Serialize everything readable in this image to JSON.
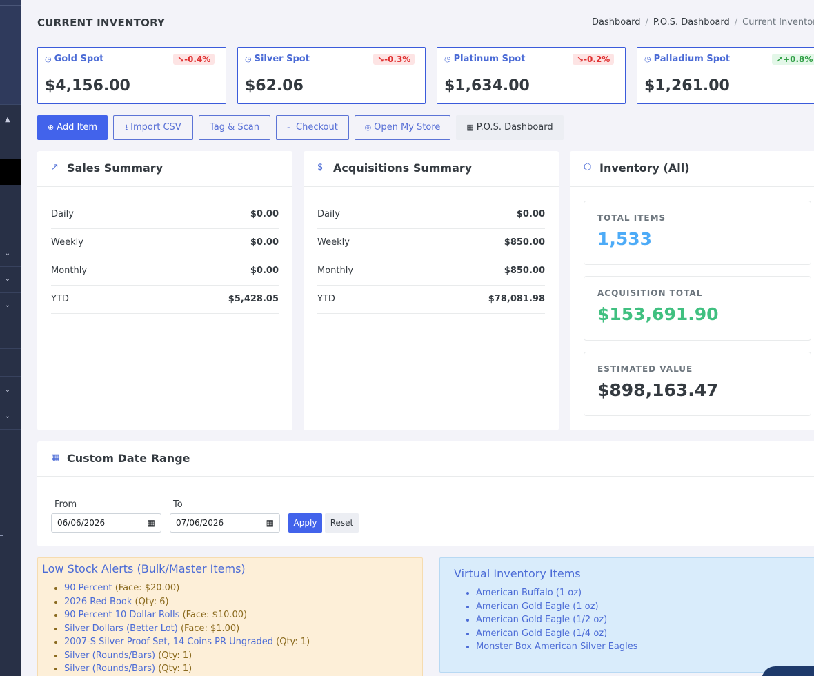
{
  "header": {
    "title": "CURRENT INVENTORY",
    "breadcrumb": [
      "Dashboard",
      "P.O.S. Dashboard",
      "Current Inventory"
    ]
  },
  "spots": [
    {
      "name": "Gold Spot",
      "change": "-0.4%",
      "direction": "down",
      "price": "$4,156.00"
    },
    {
      "name": "Silver Spot",
      "change": "-0.3%",
      "direction": "down",
      "price": "$62.06"
    },
    {
      "name": "Platinum Spot",
      "change": "-0.2%",
      "direction": "down",
      "price": "$1,634.00"
    },
    {
      "name": "Palladium Spot",
      "change": "+0.8%",
      "direction": "up",
      "price": "$1,261.00"
    }
  ],
  "actions": {
    "add_item": "Add Item",
    "import_csv": "Import CSV",
    "tag_scan": "Tag & Scan",
    "checkout": "Checkout",
    "open_store": "Open My Store",
    "pos_dashboard": "P.O.S. Dashboard"
  },
  "sales_summary": {
    "title": "Sales Summary",
    "rows": [
      {
        "label": "Daily",
        "value": "$0.00"
      },
      {
        "label": "Weekly",
        "value": "$0.00"
      },
      {
        "label": "Monthly",
        "value": "$0.00"
      },
      {
        "label": "YTD",
        "value": "$5,428.05"
      }
    ]
  },
  "acquisitions_summary": {
    "title": "Acquisitions Summary",
    "rows": [
      {
        "label": "Daily",
        "value": "$0.00"
      },
      {
        "label": "Weekly",
        "value": "$850.00"
      },
      {
        "label": "Monthly",
        "value": "$850.00"
      },
      {
        "label": "YTD",
        "value": "$78,081.98"
      }
    ]
  },
  "inventory": {
    "title": "Inventory (All)",
    "total_items_label": "TOTAL ITEMS",
    "total_items": "1,533",
    "acquisition_total_label": "ACQUISITION TOTAL",
    "acquisition_total": "$153,691.90",
    "estimated_value_label": "ESTIMATED VALUE",
    "estimated_value": "$898,163.47"
  },
  "date_range": {
    "title": "Custom Date Range",
    "from_label": "From",
    "from_value": "06/06/2026",
    "to_label": "To",
    "to_value": "07/06/2026",
    "apply": "Apply",
    "reset": "Reset"
  },
  "low_stock": {
    "title": "Low Stock Alerts (Bulk/Master Items)",
    "items": [
      {
        "name": "90 Percent",
        "detail": "(Face: $20.00)"
      },
      {
        "name": "2026 Red Book",
        "detail": "(Qty: 6)"
      },
      {
        "name": "90 Percent 10 Dollar Rolls",
        "detail": "(Face: $10.00)"
      },
      {
        "name": "Silver Dollars (Better Lot)",
        "detail": "(Face: $1.00)"
      },
      {
        "name": "2007-S Silver Proof Set, 14 Coins PR Ungraded",
        "detail": "(Qty: 1)"
      },
      {
        "name": "Silver (Rounds/Bars)",
        "detail": "(Qty: 1)"
      },
      {
        "name": "Silver (Rounds/Bars)",
        "detail": "(Qty: 1)"
      }
    ]
  },
  "virtual_inventory": {
    "title": "Virtual Inventory Items",
    "items": [
      "American Buffalo (1 oz)",
      "American Gold Eagle (1 oz)",
      "American Gold Eagle (1/2 oz)",
      "American Gold Eagle (1/4 oz)",
      "Monster Box American Silver Eagles"
    ]
  },
  "colors": {
    "accent": "#4263eb",
    "total_items": "#4dabf7",
    "acquisition_total": "#40c080",
    "sidebar": "#283046"
  }
}
